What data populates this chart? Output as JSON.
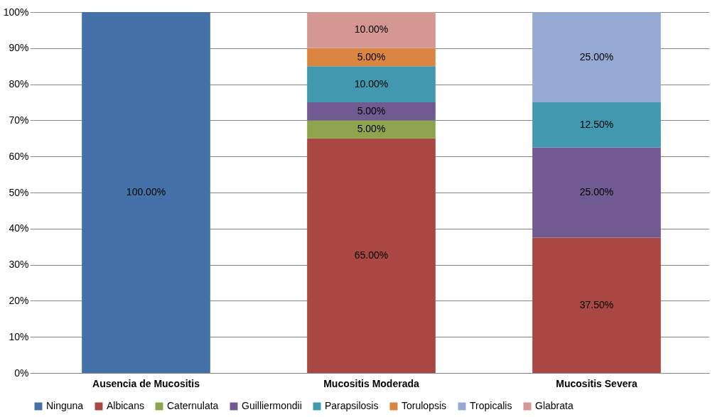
{
  "chart_data": {
    "type": "bar",
    "stacked": true,
    "categories": [
      "Ausencia de Mucositis",
      "Mucositis Moderada",
      "Mucositis Severa"
    ],
    "ylim": [
      0,
      100
    ],
    "yticks": [
      {
        "value": 0,
        "label": "0%"
      },
      {
        "value": 10,
        "label": "10%"
      },
      {
        "value": 20,
        "label": "20%"
      },
      {
        "value": 30,
        "label": "30%"
      },
      {
        "value": 40,
        "label": "40%"
      },
      {
        "value": 50,
        "label": "50%"
      },
      {
        "value": 60,
        "label": "60%"
      },
      {
        "value": 70,
        "label": "70%"
      },
      {
        "value": 80,
        "label": "80%"
      },
      {
        "value": 90,
        "label": "90%"
      },
      {
        "value": 100,
        "label": "100%"
      }
    ],
    "grid": "y",
    "legend": "bottom",
    "series": [
      {
        "name": "Ninguna",
        "color": "#4472a8",
        "values": [
          100,
          null,
          null
        ],
        "value_labels": [
          "100.00%",
          null,
          null
        ]
      },
      {
        "name": "Albicans",
        "color": "#a94843",
        "values": [
          null,
          65,
          37.5
        ],
        "value_labels": [
          null,
          "65.00%",
          "37.50%"
        ]
      },
      {
        "name": "Caternulata",
        "color": "#8ea550",
        "values": [
          null,
          5,
          null
        ],
        "value_labels": [
          null,
          "5.00%",
          null
        ]
      },
      {
        "name": "Guilliermondii",
        "color": "#715a92",
        "values": [
          null,
          5,
          25
        ],
        "value_labels": [
          null,
          "5.00%",
          "25.00%"
        ]
      },
      {
        "name": "Parapsilosis",
        "color": "#4198af",
        "values": [
          null,
          10,
          12.5
        ],
        "value_labels": [
          null,
          "10.00%",
          "12.50%"
        ]
      },
      {
        "name": "Torulopsis",
        "color": "#db8640",
        "values": [
          null,
          5,
          null
        ],
        "value_labels": [
          null,
          "5.00%",
          null
        ]
      },
      {
        "name": "Tropicalis",
        "color": "#95a9d3",
        "values": [
          null,
          null,
          25
        ],
        "value_labels": [
          null,
          null,
          "25.00%"
        ]
      },
      {
        "name": "Glabrata",
        "color": "#d49794",
        "values": [
          null,
          10,
          null
        ],
        "value_labels": [
          null,
          "10.00%",
          null
        ]
      }
    ]
  }
}
